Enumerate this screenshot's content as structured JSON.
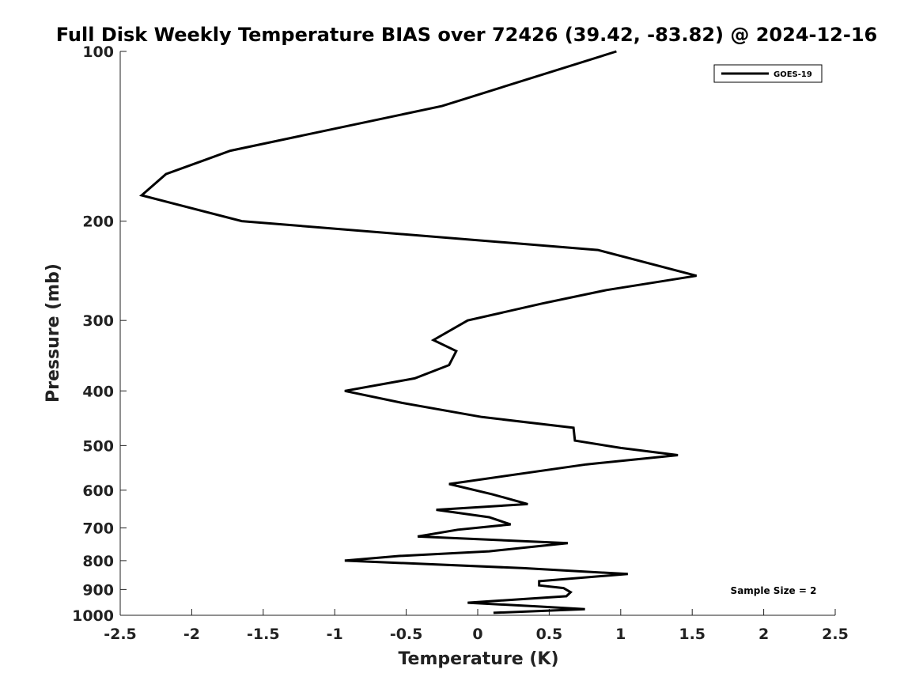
{
  "chart_data": {
    "type": "line",
    "title": "Full Disk Weekly Temperature BIAS over 72426 (39.42, -83.82) @ 2024-12-16",
    "xlabel": "Temperature (K)",
    "ylabel": "Pressure (mb)",
    "xlim": [
      -2.5,
      2.5
    ],
    "ylim": [
      100,
      1000
    ],
    "y_scale": "log",
    "y_reversed": true,
    "x_ticks": [
      -2.5,
      -2,
      -1.5,
      -1,
      -0.5,
      0,
      0.5,
      1,
      1.5,
      2,
      2.5
    ],
    "x_tick_labels": [
      "-2.5",
      "-2",
      "-1.5",
      "-1",
      "-0.5",
      "0",
      "0.5",
      "1",
      "1.5",
      "2",
      "2.5"
    ],
    "y_ticks": [
      100,
      200,
      300,
      400,
      500,
      600,
      700,
      800,
      900,
      1000
    ],
    "y_tick_labels": [
      "100",
      "200",
      "300",
      "400",
      "500",
      "600",
      "700",
      "800",
      "900",
      "1000"
    ],
    "grid": false,
    "legend_position": "top-right",
    "annotation": "Sample Size = 2",
    "series": [
      {
        "name": "GOES-19",
        "color": "#000000",
        "x": [
          0.97,
          -0.25,
          -1.73,
          -2.18,
          -2.35,
          -1.65,
          0.84,
          1.53,
          0.9,
          0.45,
          -0.07,
          -0.31,
          -0.15,
          -0.2,
          -0.44,
          -0.93,
          -0.53,
          0.03,
          0.67,
          0.68,
          1.0,
          1.4,
          0.76,
          -0.2,
          0.1,
          0.35,
          -0.29,
          0.08,
          0.23,
          -0.14,
          -0.42,
          0.63,
          0.08,
          -0.55,
          -0.93,
          0.32,
          1.05,
          0.43,
          0.43,
          0.6,
          0.65,
          0.62,
          -0.07,
          0.44,
          0.75,
          0.11
        ],
        "y": [
          100,
          125,
          150,
          165,
          180,
          200,
          225,
          250,
          265,
          280,
          300,
          325,
          340,
          360,
          380,
          400,
          420,
          445,
          465,
          490,
          505,
          520,
          540,
          585,
          610,
          635,
          650,
          670,
          690,
          705,
          725,
          745,
          770,
          785,
          800,
          825,
          845,
          870,
          885,
          895,
          910,
          925,
          950,
          965,
          975,
          990
        ]
      }
    ]
  }
}
